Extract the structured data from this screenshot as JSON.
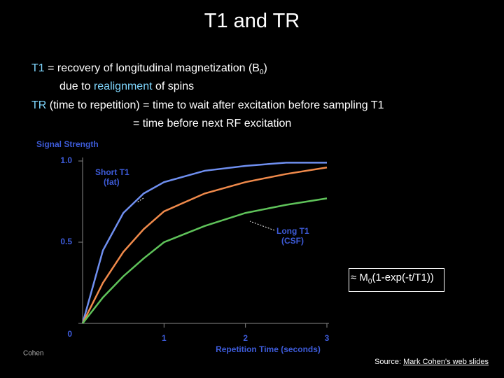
{
  "slide": {
    "title": "T1 and TR",
    "lines": [
      [
        "T1",
        " = recovery of longitudinal magnetization (B",
        "0",
        ")"
      ],
      [
        "due to ",
        "realignment",
        " of spins"
      ],
      [
        "TR",
        " (time to repetition) = time to wait after excitation before sampling T1"
      ],
      [
        "= time before next RF excitation"
      ]
    ],
    "formula": [
      "≈ M",
      "0",
      "(1-exp(-t/T1))"
    ],
    "source": [
      "Source: ",
      "Mark Cohen's web slides"
    ]
  },
  "chart_data": {
    "type": "line",
    "y_label": "Signal Strength",
    "x_label": "Repetition Time (seconds)",
    "annotations": [
      "Short T1",
      "(fat)",
      "Long T1",
      "(CSF)",
      "Cohen"
    ],
    "x": [
      0,
      0.25,
      0.5,
      0.75,
      1,
      1.5,
      2,
      2.5,
      3
    ],
    "series": [
      {
        "color": "#6f8ff0",
        "values": [
          0,
          0.45,
          0.68,
          0.8,
          0.87,
          0.94,
          0.97,
          0.99,
          0.99
        ]
      },
      {
        "color": "#f08a4b",
        "values": [
          0,
          0.25,
          0.44,
          0.58,
          0.69,
          0.8,
          0.87,
          0.92,
          0.96
        ]
      },
      {
        "color": "#5fc35a",
        "values": [
          0,
          0.16,
          0.29,
          0.4,
          0.5,
          0.6,
          0.68,
          0.73,
          0.77
        ]
      }
    ],
    "xlim": [
      0,
      3
    ],
    "ylim": [
      0,
      1
    ],
    "xticks": [
      1,
      2,
      3
    ],
    "yticks": [
      0,
      0.5,
      {
        "value": 1,
        "label": "1.0"
      }
    ],
    "grid": false
  }
}
